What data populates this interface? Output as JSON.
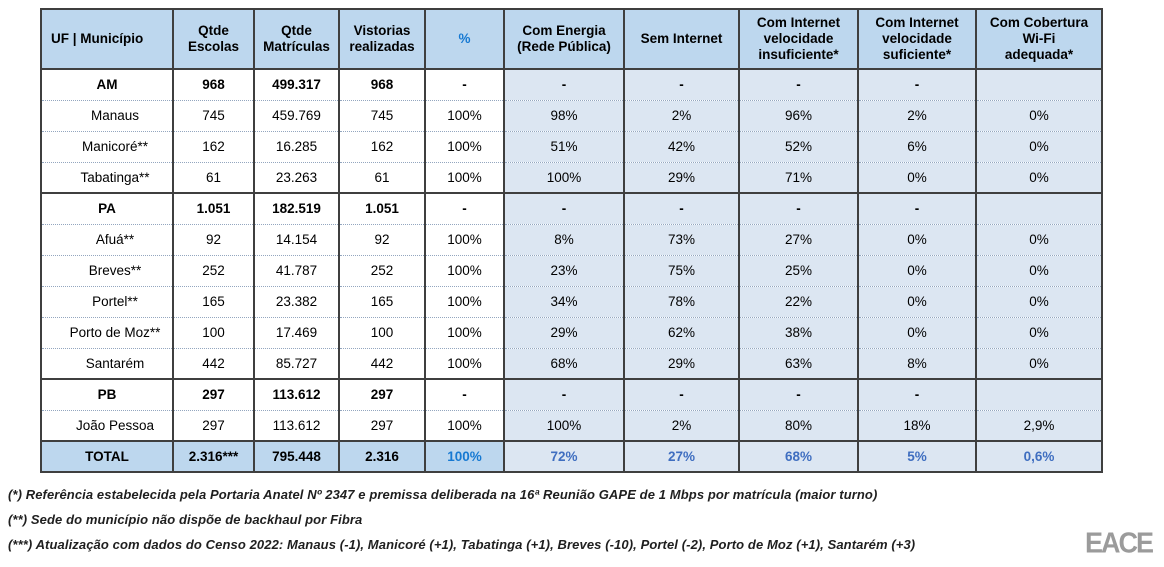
{
  "table": {
    "columns": [
      "UF | Município",
      "Qtde\nEscolas",
      "Qtde\nMatrículas",
      "Vistorias\nrealizadas",
      "%",
      "Com Energia\n(Rede Pública)",
      "Sem Internet",
      "Com Internet\nvelocidade\ninsuficiente*",
      "Com Internet\nvelocidade\nsuficiente*",
      "Com Cobertura\nWi-Fi\nadequada*"
    ],
    "rows": [
      {
        "type": "state",
        "label": "AM",
        "cells": [
          "968",
          "499.317",
          "968",
          "-",
          "-",
          "-",
          "-",
          "-",
          ""
        ]
      },
      {
        "type": "municipality",
        "label": "Manaus",
        "cells": [
          "745",
          "459.769",
          "745",
          "100%",
          "98%",
          "2%",
          "96%",
          "2%",
          "0%"
        ]
      },
      {
        "type": "municipality",
        "label": "Manicoré**",
        "cells": [
          "162",
          "16.285",
          "162",
          "100%",
          "51%",
          "42%",
          "52%",
          "6%",
          "0%"
        ]
      },
      {
        "type": "municipality",
        "label": "Tabatinga**",
        "cells": [
          "61",
          "23.263",
          "61",
          "100%",
          "100%",
          "29%",
          "71%",
          "0%",
          "0%"
        ]
      },
      {
        "type": "state",
        "label": "PA",
        "cells": [
          "1.051",
          "182.519",
          "1.051",
          "-",
          "-",
          "-",
          "-",
          "-",
          ""
        ]
      },
      {
        "type": "municipality",
        "label": "Afuá**",
        "cells": [
          "92",
          "14.154",
          "92",
          "100%",
          "8%",
          "73%",
          "27%",
          "0%",
          "0%"
        ]
      },
      {
        "type": "municipality",
        "label": "Breves**",
        "cells": [
          "252",
          "41.787",
          "252",
          "100%",
          "23%",
          "75%",
          "25%",
          "0%",
          "0%"
        ]
      },
      {
        "type": "municipality",
        "label": "Portel**",
        "cells": [
          "165",
          "23.382",
          "165",
          "100%",
          "34%",
          "78%",
          "22%",
          "0%",
          "0%"
        ]
      },
      {
        "type": "municipality",
        "label": "Porto de Moz**",
        "cells": [
          "100",
          "17.469",
          "100",
          "100%",
          "29%",
          "62%",
          "38%",
          "0%",
          "0%"
        ]
      },
      {
        "type": "municipality",
        "label": "Santarém",
        "cells": [
          "442",
          "85.727",
          "442",
          "100%",
          "68%",
          "29%",
          "63%",
          "8%",
          "0%"
        ]
      },
      {
        "type": "state",
        "label": "PB",
        "cells": [
          "297",
          "113.612",
          "297",
          "-",
          "-",
          "-",
          "-",
          "-",
          ""
        ]
      },
      {
        "type": "municipality",
        "label": "João Pessoa",
        "cells": [
          "297",
          "113.612",
          "297",
          "100%",
          "100%",
          "2%",
          "80%",
          "18%",
          "2,9%"
        ]
      },
      {
        "type": "total",
        "label": "TOTAL",
        "cells": [
          "2.316***",
          "795.448",
          "2.316",
          "100%",
          "72%",
          "27%",
          "68%",
          "5%",
          "0,6%"
        ]
      }
    ]
  },
  "footnotes": [
    "(*) Referência estabelecida pela Portaria Anatel Nº 2347 e premissa deliberada na 16ª Reunião GAPE de 1 Mbps por matrícula (maior turno)",
    "(**) Sede do município não dispõe de backhaul por Fibra",
    "(***) Atualização com dados do Censo 2022: Manaus (-1), Manicoré (+1), Tabatinga (+1), Breves (-10), Portel (-2), Porto de Moz (+1), Santarém (+3)"
  ],
  "logo_text": "EACE",
  "colors": {
    "header_bg": "#bdd7ee",
    "band_bg": "#dce6f2",
    "bright_blue": "#1679d2",
    "muted_blue": "#5b7ec9",
    "total_blue": "#3f6ec0",
    "border": "#3f3f3f",
    "logo_gray": "#9b9b9b"
  }
}
